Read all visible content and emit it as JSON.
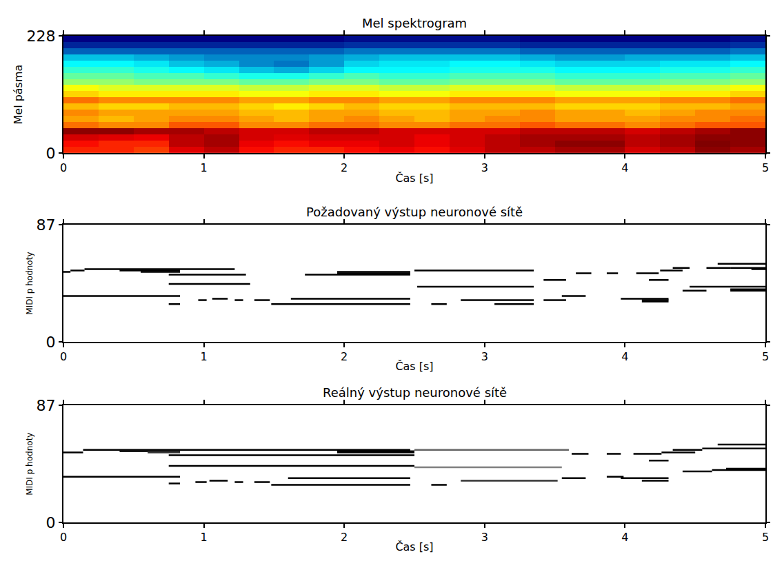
{
  "chart_data": [
    {
      "type": "heatmap",
      "title": "Mel spektrogram",
      "x_label": "Čas [s]",
      "y_label": "Mel pásma",
      "x": [
        0.125,
        0.375,
        0.625,
        0.875,
        1.125,
        1.375,
        1.625,
        1.875,
        2.125,
        2.375,
        2.625,
        2.875,
        3.125,
        3.375,
        3.625,
        3.875,
        4.125,
        4.375,
        4.625,
        4.875
      ],
      "y": [
        6,
        18,
        30,
        42,
        54,
        66,
        78,
        90,
        102,
        114,
        126,
        138,
        150,
        162,
        174,
        186,
        198,
        210,
        222
      ],
      "z": [
        [
          0.8,
          0.8,
          0.78,
          0.85,
          0.88,
          0.82,
          0.8,
          0.8,
          0.82,
          0.84,
          0.82,
          0.85,
          0.88,
          0.88,
          0.9,
          0.9,
          0.86,
          0.88,
          0.92,
          0.9
        ],
        [
          0.82,
          0.8,
          0.8,
          0.88,
          0.9,
          0.84,
          0.82,
          0.84,
          0.84,
          0.86,
          0.84,
          0.86,
          0.88,
          0.9,
          0.92,
          0.92,
          0.88,
          0.9,
          0.93,
          0.92
        ],
        [
          0.86,
          0.85,
          0.84,
          0.88,
          0.9,
          0.86,
          0.85,
          0.86,
          0.86,
          0.86,
          0.84,
          0.86,
          0.88,
          0.9,
          0.9,
          0.9,
          0.88,
          0.9,
          0.92,
          0.92
        ],
        [
          0.92,
          0.92,
          0.9,
          0.9,
          0.88,
          0.86,
          0.86,
          0.88,
          0.88,
          0.86,
          0.86,
          0.86,
          0.86,
          0.88,
          0.88,
          0.88,
          0.86,
          0.88,
          0.9,
          0.92
        ],
        [
          0.74,
          0.72,
          0.72,
          0.76,
          0.76,
          0.72,
          0.72,
          0.74,
          0.74,
          0.72,
          0.72,
          0.74,
          0.74,
          0.76,
          0.74,
          0.74,
          0.72,
          0.74,
          0.76,
          0.76
        ],
        [
          0.7,
          0.68,
          0.7,
          0.72,
          0.72,
          0.7,
          0.68,
          0.7,
          0.72,
          0.7,
          0.68,
          0.7,
          0.72,
          0.72,
          0.7,
          0.7,
          0.7,
          0.72,
          0.72,
          0.74
        ],
        [
          0.72,
          0.7,
          0.7,
          0.7,
          0.7,
          0.68,
          0.68,
          0.7,
          0.7,
          0.68,
          0.68,
          0.7,
          0.7,
          0.72,
          0.7,
          0.7,
          0.68,
          0.7,
          0.72,
          0.72
        ],
        [
          0.68,
          0.66,
          0.66,
          0.68,
          0.68,
          0.66,
          0.64,
          0.66,
          0.68,
          0.66,
          0.66,
          0.68,
          0.68,
          0.68,
          0.66,
          0.66,
          0.66,
          0.68,
          0.68,
          0.7
        ],
        [
          0.74,
          0.72,
          0.72,
          0.72,
          0.72,
          0.7,
          0.7,
          0.72,
          0.72,
          0.7,
          0.7,
          0.72,
          0.72,
          0.72,
          0.7,
          0.7,
          0.7,
          0.72,
          0.72,
          0.74
        ],
        [
          0.66,
          0.64,
          0.64,
          0.64,
          0.64,
          0.62,
          0.62,
          0.64,
          0.64,
          0.62,
          0.62,
          0.64,
          0.64,
          0.64,
          0.62,
          0.62,
          0.62,
          0.64,
          0.64,
          0.66
        ],
        [
          0.62,
          0.6,
          0.6,
          0.6,
          0.6,
          0.58,
          0.58,
          0.6,
          0.6,
          0.58,
          0.58,
          0.6,
          0.6,
          0.6,
          0.58,
          0.58,
          0.58,
          0.6,
          0.6,
          0.62
        ],
        [
          0.54,
          0.54,
          0.52,
          0.52,
          0.52,
          0.5,
          0.5,
          0.52,
          0.52,
          0.5,
          0.5,
          0.52,
          0.52,
          0.52,
          0.5,
          0.5,
          0.5,
          0.52,
          0.52,
          0.54
        ],
        [
          0.5,
          0.5,
          0.48,
          0.48,
          0.46,
          0.44,
          0.44,
          0.46,
          0.48,
          0.46,
          0.46,
          0.48,
          0.48,
          0.48,
          0.46,
          0.46,
          0.46,
          0.48,
          0.48,
          0.5
        ],
        [
          0.46,
          0.46,
          0.44,
          0.42,
          0.4,
          0.36,
          0.34,
          0.38,
          0.42,
          0.42,
          0.42,
          0.44,
          0.44,
          0.44,
          0.42,
          0.42,
          0.42,
          0.44,
          0.44,
          0.46
        ],
        [
          0.42,
          0.42,
          0.4,
          0.36,
          0.34,
          0.3,
          0.28,
          0.32,
          0.38,
          0.4,
          0.4,
          0.42,
          0.42,
          0.4,
          0.38,
          0.38,
          0.38,
          0.4,
          0.4,
          0.42
        ],
        [
          0.36,
          0.36,
          0.34,
          0.32,
          0.3,
          0.3,
          0.3,
          0.32,
          0.34,
          0.36,
          0.36,
          0.36,
          0.36,
          0.34,
          0.32,
          0.32,
          0.34,
          0.34,
          0.34,
          0.36
        ],
        [
          0.26,
          0.26,
          0.26,
          0.26,
          0.26,
          0.26,
          0.26,
          0.26,
          0.28,
          0.28,
          0.28,
          0.28,
          0.28,
          0.26,
          0.26,
          0.26,
          0.26,
          0.26,
          0.26,
          0.28
        ],
        [
          0.18,
          0.18,
          0.18,
          0.18,
          0.18,
          0.18,
          0.18,
          0.18,
          0.2,
          0.2,
          0.2,
          0.2,
          0.2,
          0.18,
          0.18,
          0.18,
          0.18,
          0.18,
          0.18,
          0.2
        ],
        [
          0.12,
          0.12,
          0.12,
          0.12,
          0.12,
          0.12,
          0.12,
          0.12,
          0.14,
          0.14,
          0.14,
          0.14,
          0.14,
          0.12,
          0.12,
          0.12,
          0.12,
          0.12,
          0.12,
          0.14
        ]
      ],
      "xlim": [
        0,
        5
      ],
      "xticks": [
        0,
        1,
        2,
        3,
        4,
        5
      ],
      "ylim": [
        0,
        228
      ],
      "yticks": [
        0,
        228
      ]
    },
    {
      "type": "piano_roll",
      "title": "Požadovaný výstup neuronové sítě",
      "x_label": "Čas [s]",
      "y_label": "MIDI p hodnoty",
      "color": "#000000",
      "notes": [
        {
          "start": 0,
          "end": 0.05,
          "pitch": 52,
          "value": 1
        },
        {
          "start": 0.05,
          "end": 0.15,
          "pitch": 53,
          "value": 1
        },
        {
          "start": 0.15,
          "end": 1.22,
          "pitch": 54,
          "value": 1
        },
        {
          "start": 0.4,
          "end": 0.83,
          "pitch": 53,
          "value": 1
        },
        {
          "start": 0.55,
          "end": 0.83,
          "pitch": 52,
          "value": 1
        },
        {
          "start": 0,
          "end": 0.83,
          "pitch": 34,
          "value": 1
        },
        {
          "start": 0.75,
          "end": 1.3,
          "pitch": 50,
          "value": 1
        },
        {
          "start": 0.75,
          "end": 1.33,
          "pitch": 43,
          "value": 1
        },
        {
          "start": 0.75,
          "end": 0.83,
          "pitch": 28,
          "value": 1
        },
        {
          "start": 0.96,
          "end": 1.02,
          "pitch": 31,
          "value": 1
        },
        {
          "start": 1.06,
          "end": 1.17,
          "pitch": 32,
          "value": 1
        },
        {
          "start": 1.22,
          "end": 1.28,
          "pitch": 31,
          "value": 1
        },
        {
          "start": 1.36,
          "end": 1.47,
          "pitch": 31,
          "value": 1
        },
        {
          "start": 1.48,
          "end": 2.47,
          "pitch": 28,
          "value": 1
        },
        {
          "start": 1.62,
          "end": 2.47,
          "pitch": 32,
          "value": 1
        },
        {
          "start": 1.72,
          "end": 2.47,
          "pitch": 50,
          "value": 1
        },
        {
          "start": 1.95,
          "end": 2.47,
          "pitch": 51,
          "value": 1
        },
        {
          "start": 1.95,
          "end": 2.47,
          "pitch": 52,
          "value": 1
        },
        {
          "start": 2.5,
          "end": 3.35,
          "pitch": 53,
          "value": 1
        },
        {
          "start": 2.52,
          "end": 3.35,
          "pitch": 41,
          "value": 1
        },
        {
          "start": 2.62,
          "end": 2.73,
          "pitch": 28,
          "value": 1
        },
        {
          "start": 2.83,
          "end": 3.35,
          "pitch": 31,
          "value": 1
        },
        {
          "start": 3.07,
          "end": 3.35,
          "pitch": 28,
          "value": 1
        },
        {
          "start": 3.42,
          "end": 3.58,
          "pitch": 31,
          "value": 1
        },
        {
          "start": 3.42,
          "end": 3.58,
          "pitch": 46,
          "value": 1
        },
        {
          "start": 3.55,
          "end": 3.72,
          "pitch": 34,
          "value": 1
        },
        {
          "start": 3.65,
          "end": 3.76,
          "pitch": 51,
          "value": 1
        },
        {
          "start": 3.87,
          "end": 3.95,
          "pitch": 51,
          "value": 1
        },
        {
          "start": 3.97,
          "end": 4.31,
          "pitch": 32,
          "value": 1
        },
        {
          "start": 4.12,
          "end": 4.31,
          "pitch": 31,
          "value": 1
        },
        {
          "start": 4.12,
          "end": 4.31,
          "pitch": 30,
          "value": 1
        },
        {
          "start": 4.08,
          "end": 4.24,
          "pitch": 51,
          "value": 1
        },
        {
          "start": 4.17,
          "end": 4.31,
          "pitch": 46,
          "value": 1
        },
        {
          "start": 4.25,
          "end": 4.41,
          "pitch": 53,
          "value": 1
        },
        {
          "start": 4.34,
          "end": 4.46,
          "pitch": 55,
          "value": 1
        },
        {
          "start": 4.41,
          "end": 4.58,
          "pitch": 38,
          "value": 1
        },
        {
          "start": 4.46,
          "end": 5,
          "pitch": 41,
          "value": 1
        },
        {
          "start": 4.58,
          "end": 4.75,
          "pitch": 55,
          "value": 1
        },
        {
          "start": 4.66,
          "end": 5,
          "pitch": 58,
          "value": 1
        },
        {
          "start": 4.75,
          "end": 5,
          "pitch": 55,
          "value": 1
        },
        {
          "start": 4.9,
          "end": 5,
          "pitch": 54,
          "value": 1
        },
        {
          "start": 4.75,
          "end": 5,
          "pitch": 38,
          "value": 1
        },
        {
          "start": 4.75,
          "end": 5,
          "pitch": 39,
          "value": 1
        }
      ],
      "xlim": [
        0,
        5
      ],
      "xticks": [
        0,
        1,
        2,
        3,
        4,
        5
      ],
      "ylim": [
        0,
        87
      ],
      "yticks": [
        0,
        87
      ]
    },
    {
      "type": "piano_roll",
      "title": "Reálný výstup neuronové sítě",
      "x_label": "Čas [s]",
      "y_label": "MIDI p hodnoty",
      "color": "#000000",
      "notes": [
        {
          "start": 0,
          "end": 0.14,
          "pitch": 52,
          "value": 1
        },
        {
          "start": 0.14,
          "end": 2.47,
          "pitch": 54,
          "value": 1
        },
        {
          "start": 0.4,
          "end": 0.83,
          "pitch": 53,
          "value": 0.9
        },
        {
          "start": 0.6,
          "end": 0.83,
          "pitch": 52,
          "value": 0.8
        },
        {
          "start": 0,
          "end": 0.83,
          "pitch": 34,
          "value": 1
        },
        {
          "start": 0.75,
          "end": 2.5,
          "pitch": 50,
          "value": 1
        },
        {
          "start": 1.95,
          "end": 2.5,
          "pitch": 52,
          "value": 1
        },
        {
          "start": 1.95,
          "end": 2.5,
          "pitch": 53,
          "value": 1
        },
        {
          "start": 0.75,
          "end": 2.5,
          "pitch": 42,
          "value": 1
        },
        {
          "start": 2.5,
          "end": 3.55,
          "pitch": 41,
          "value": 0.5
        },
        {
          "start": 0.75,
          "end": 0.83,
          "pitch": 29,
          "value": 1
        },
        {
          "start": 0.94,
          "end": 1.02,
          "pitch": 30,
          "value": 1
        },
        {
          "start": 1.04,
          "end": 1.17,
          "pitch": 31,
          "value": 1
        },
        {
          "start": 1.22,
          "end": 1.28,
          "pitch": 30,
          "value": 1
        },
        {
          "start": 1.36,
          "end": 1.47,
          "pitch": 30,
          "value": 1
        },
        {
          "start": 1.48,
          "end": 2.47,
          "pitch": 28,
          "value": 1
        },
        {
          "start": 1.6,
          "end": 2.47,
          "pitch": 33,
          "value": 1
        },
        {
          "start": 2.5,
          "end": 3.6,
          "pitch": 54,
          "value": 0.6
        },
        {
          "start": 2.62,
          "end": 2.73,
          "pitch": 28,
          "value": 1
        },
        {
          "start": 2.83,
          "end": 3.52,
          "pitch": 31,
          "value": 0.8
        },
        {
          "start": 3.55,
          "end": 3.72,
          "pitch": 33,
          "value": 1
        },
        {
          "start": 3.62,
          "end": 3.74,
          "pitch": 51,
          "value": 1
        },
        {
          "start": 3.87,
          "end": 3.99,
          "pitch": 34,
          "value": 1
        },
        {
          "start": 3.87,
          "end": 3.97,
          "pitch": 51,
          "value": 1
        },
        {
          "start": 3.97,
          "end": 4.31,
          "pitch": 33,
          "value": 1
        },
        {
          "start": 4.12,
          "end": 4.31,
          "pitch": 31,
          "value": 1
        },
        {
          "start": 4.06,
          "end": 4.26,
          "pitch": 51,
          "value": 1
        },
        {
          "start": 4.17,
          "end": 4.31,
          "pitch": 46,
          "value": 1
        },
        {
          "start": 4.26,
          "end": 4.5,
          "pitch": 52,
          "value": 1
        },
        {
          "start": 4.34,
          "end": 4.55,
          "pitch": 54,
          "value": 1
        },
        {
          "start": 4.55,
          "end": 5,
          "pitch": 55,
          "value": 1
        },
        {
          "start": 4.66,
          "end": 5,
          "pitch": 58,
          "value": 1
        },
        {
          "start": 4.41,
          "end": 4.62,
          "pitch": 38,
          "value": 1
        },
        {
          "start": 4.62,
          "end": 5,
          "pitch": 39,
          "value": 1
        },
        {
          "start": 4.72,
          "end": 5,
          "pitch": 40,
          "value": 1
        }
      ],
      "xlim": [
        0,
        5
      ],
      "xticks": [
        0,
        1,
        2,
        3,
        4,
        5
      ],
      "ylim": [
        0,
        87
      ],
      "yticks": [
        0,
        87
      ]
    }
  ]
}
